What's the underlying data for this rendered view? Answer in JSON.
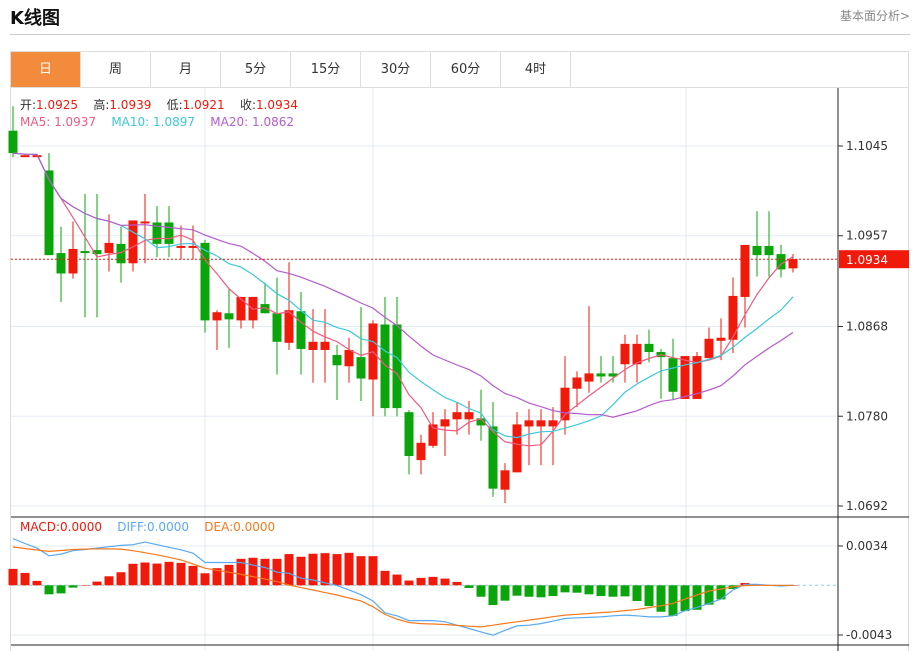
{
  "header": {
    "title": "K线图",
    "fundamental_link": "基本面分析>"
  },
  "tabs": [
    {
      "label": "日",
      "active": true
    },
    {
      "label": "周"
    },
    {
      "label": "月"
    },
    {
      "label": "5分"
    },
    {
      "label": "15分"
    },
    {
      "label": "30分"
    },
    {
      "label": "60分"
    },
    {
      "label": "4时"
    }
  ],
  "ohlc_info": {
    "open_label": "开:",
    "open": "1.0925",
    "high_label": "高:",
    "high": "1.0939",
    "low_label": "低:",
    "low": "1.0921",
    "close_label": "收:",
    "close": "1.0934"
  },
  "ma_info": {
    "ma5_label": "MA5: ",
    "ma5": "1.0937",
    "ma10_label": "MA10: ",
    "ma10": "1.0897",
    "ma20_label": "MA20: ",
    "ma20": "1.0862"
  },
  "macd_info": {
    "macd_label": "MACD:",
    "macd": "0.0000",
    "diff_label": "DIFF:",
    "diff": "0.0000",
    "dea_label": "DEA:",
    "dea": "0.0000"
  },
  "colors": {
    "up": "#f0190a",
    "down": "#0aa50a",
    "ma5": "#f05a80",
    "ma10": "#3cc8dc",
    "ma20": "#b45ccc",
    "diff": "#5aaaf0",
    "dea": "#f57a1e",
    "active_tab": "#f28c3c"
  },
  "chart_data": [
    {
      "type": "candlestick",
      "ylim": [
        1.0692,
        1.1045
      ],
      "yticks": [
        "1.1045",
        "1.0957",
        "1.0868",
        "1.0780",
        "1.0692"
      ],
      "current_price": "1.0934",
      "grid": true,
      "candles_ohlc": [
        [
          1.106,
          1.1084,
          1.1034,
          1.1038
        ],
        [
          1.1035,
          1.1036,
          1.1035,
          1.1036
        ],
        [
          1.1035,
          1.1036,
          1.1035,
          1.1036
        ],
        [
          1.1021,
          1.1038,
          1.0938,
          1.0938
        ],
        [
          1.094,
          1.0966,
          1.0892,
          1.092
        ],
        [
          1.092,
          1.0971,
          1.0915,
          1.0944
        ],
        [
          1.0942,
          1.0998,
          1.0877,
          1.094
        ],
        [
          1.0943,
          1.0998,
          1.0877,
          1.0939
        ],
        [
          1.094,
          1.0978,
          1.0922,
          1.095
        ],
        [
          1.0949,
          1.0966,
          1.0911,
          1.093
        ],
        [
          1.093,
          1.0972,
          1.0922,
          1.0972
        ],
        [
          1.097,
          1.0998,
          1.093,
          1.0971
        ],
        [
          1.097,
          1.0986,
          1.0936,
          1.0949
        ],
        [
          1.097,
          1.0986,
          1.0936,
          1.0949
        ],
        [
          1.0946,
          1.0967,
          1.0934,
          1.0947
        ],
        [
          1.0946,
          1.0967,
          1.0934,
          1.0947
        ],
        [
          1.095,
          1.0953,
          1.0862,
          1.0874
        ],
        [
          1.0874,
          1.0884,
          1.0845,
          1.0882
        ],
        [
          1.0881,
          1.0906,
          1.0847,
          1.0875
        ],
        [
          1.0874,
          1.0897,
          1.0866,
          1.0897
        ],
        [
          1.0874,
          1.0897,
          1.0866,
          1.0897
        ],
        [
          1.089,
          1.0911,
          1.0881,
          1.0881
        ],
        [
          1.0881,
          1.0916,
          1.0821,
          1.0853
        ],
        [
          1.0852,
          1.0931,
          1.0845,
          1.0884
        ],
        [
          1.0883,
          1.0902,
          1.0821,
          1.0846
        ],
        [
          1.0845,
          1.0885,
          1.0813,
          1.0853
        ],
        [
          1.0845,
          1.0885,
          1.0813,
          1.0853
        ],
        [
          1.084,
          1.085,
          1.0796,
          1.083
        ],
        [
          1.0829,
          1.0857,
          1.0813,
          1.0845
        ],
        [
          1.0838,
          1.0887,
          1.0795,
          1.0817
        ],
        [
          1.0816,
          1.0874,
          1.078,
          1.0871
        ],
        [
          1.087,
          1.0897,
          1.078,
          1.0788
        ],
        [
          1.087,
          1.0897,
          1.078,
          1.0788
        ],
        [
          1.0784,
          1.0786,
          1.0723,
          1.0741
        ],
        [
          1.0737,
          1.0762,
          1.0723,
          1.0754
        ],
        [
          1.0751,
          1.0784,
          1.0749,
          1.0772
        ],
        [
          1.077,
          1.0787,
          1.0741,
          1.0777
        ],
        [
          1.0777,
          1.0794,
          1.0762,
          1.0784
        ],
        [
          1.0777,
          1.0795,
          1.0762,
          1.0784
        ],
        [
          1.0778,
          1.0806,
          1.0756,
          1.0771
        ],
        [
          1.077,
          1.0794,
          1.0701,
          1.0709
        ],
        [
          1.0708,
          1.0734,
          1.0695,
          1.0727
        ],
        [
          1.0725,
          1.0784,
          1.0725,
          1.0772
        ],
        [
          1.077,
          1.0787,
          1.0732,
          1.0776
        ],
        [
          1.077,
          1.0787,
          1.0732,
          1.0776
        ],
        [
          1.077,
          1.0789,
          1.0732,
          1.0776
        ],
        [
          1.0776,
          1.0839,
          1.0762,
          1.0808
        ],
        [
          1.0807,
          1.0824,
          1.0789,
          1.0818
        ],
        [
          1.0814,
          1.0888,
          1.0803,
          1.0822
        ],
        [
          1.0822,
          1.0839,
          1.0813,
          1.0819
        ],
        [
          1.0822,
          1.0839,
          1.0813,
          1.0819
        ],
        [
          1.0831,
          1.086,
          1.0813,
          1.0851
        ],
        [
          1.0831,
          1.086,
          1.0813,
          1.0851
        ],
        [
          1.0851,
          1.0865,
          1.0833,
          1.0843
        ],
        [
          1.0843,
          1.0846,
          1.0797,
          1.0838
        ],
        [
          1.0837,
          1.0856,
          1.0796,
          1.0804
        ],
        [
          1.0797,
          1.0839,
          1.0797,
          1.0839
        ],
        [
          1.0797,
          1.0843,
          1.0797,
          1.0839
        ],
        [
          1.0837,
          1.0867,
          1.0837,
          1.0856
        ],
        [
          1.0854,
          1.0876,
          1.0835,
          1.0857
        ],
        [
          1.0855,
          1.0916,
          1.0842,
          1.0898
        ],
        [
          1.0897,
          1.0948,
          1.0867,
          1.0948
        ],
        [
          1.0947,
          1.0981,
          1.0917,
          1.0938
        ],
        [
          1.0947,
          1.0981,
          1.0917,
          1.0938
        ],
        [
          1.0939,
          1.0948,
          1.0916,
          1.0924
        ],
        [
          1.0925,
          1.0939,
          1.0921,
          1.0934
        ]
      ],
      "series": [
        {
          "name": "MA5",
          "period": 5
        },
        {
          "name": "MA10",
          "period": 10
        },
        {
          "name": "MA20",
          "period": 20
        }
      ]
    },
    {
      "type": "bar+line",
      "ylim": [
        -0.0043,
        0.0034
      ],
      "yticks": [
        "0.0034",
        "-0.0043"
      ],
      "macd": [
        0.00142,
        0.00107,
        0.00038,
        -0.00078,
        -0.0007,
        -0.0002,
        2e-05,
        0.00032,
        0.00078,
        0.00113,
        0.00186,
        0.00197,
        0.00188,
        0.00203,
        0.00194,
        0.00168,
        0.00104,
        0.00148,
        0.00177,
        0.00229,
        0.00238,
        0.00229,
        0.00229,
        0.0027,
        0.00247,
        0.00273,
        0.00278,
        0.0027,
        0.00281,
        0.00252,
        0.00252,
        0.00125,
        0.00093,
        0.00041,
        0.00064,
        0.00073,
        0.00058,
        0.00029,
        -0.00023,
        -0.00099,
        -0.00171,
        -0.00133,
        -0.0009,
        -0.00099,
        -0.00104,
        -0.00093,
        -0.00061,
        -0.00064,
        -0.00078,
        -0.00093,
        -0.00099,
        -0.00096,
        -0.00136,
        -0.0018,
        -0.00229,
        -0.00264,
        -0.00223,
        -0.00212,
        -0.00168,
        -0.00122,
        -0.00032,
        0.0002,
        6e-05,
        0,
        -6e-05,
        0
      ],
      "diff": [
        0.00403,
        0.00362,
        0.00322,
        0.00255,
        0.0027,
        0.00299,
        0.0031,
        0.00322,
        0.00334,
        0.00345,
        0.00351,
        0.00374,
        0.00351,
        0.00329,
        0.00307,
        0.00278,
        0.00197,
        0.00197,
        0.00197,
        0.00197,
        0.00175,
        0.00154,
        0.00113,
        0.00104,
        0.00061,
        0.00046,
        0.00022,
        -3e-05,
        -0.0004,
        -0.00081,
        -0.00136,
        -0.00238,
        -0.00264,
        -0.00305,
        -0.00305,
        -0.00305,
        -0.00316,
        -0.00345,
        -0.00374,
        -0.00403,
        -0.00432,
        -0.00389,
        -0.00351,
        -0.00345,
        -0.00331,
        -0.0031,
        -0.00287,
        -0.00281,
        -0.00278,
        -0.00273,
        -0.00264,
        -0.00258,
        -0.00264,
        -0.00273,
        -0.00273,
        -0.00264,
        -0.0022,
        -0.00191,
        -0.00157,
        -0.00119,
        -0.00041,
        9e-05,
        9e-05,
        0,
        -6e-05,
        0
      ],
      "dea": [
        0.00331,
        0.00318,
        0.00305,
        0.00293,
        0.00301,
        0.0031,
        0.00313,
        0.00316,
        0.00315,
        0.00313,
        0.00299,
        0.00282,
        0.00264,
        0.00242,
        0.0022,
        0.00184,
        0.00148,
        0.0013,
        0.00113,
        0.00094,
        0.00075,
        0.00054,
        0.00032,
        3e-05,
        -0.0002,
        -0.00041,
        -0.00063,
        -0.00084,
        -0.0011,
        -0.00136,
        -0.00186,
        -0.00252,
        -0.00293,
        -0.00322,
        -0.00331,
        -0.00335,
        -0.00339,
        -0.00347,
        -0.00354,
        -0.0036,
        -0.00345,
        -0.0033,
        -0.00316,
        -0.00301,
        -0.00287,
        -0.00272,
        -0.00258,
        -0.00251,
        -0.00244,
        -0.00236,
        -0.00229,
        -0.00219,
        -0.00209,
        -0.00193,
        -0.00177,
        -0.00157,
        -0.00119,
        -0.00084,
        -0.00049,
        -0.00032,
        -0.00012,
        -3e-05,
        0,
        0,
        0,
        0
      ]
    }
  ]
}
